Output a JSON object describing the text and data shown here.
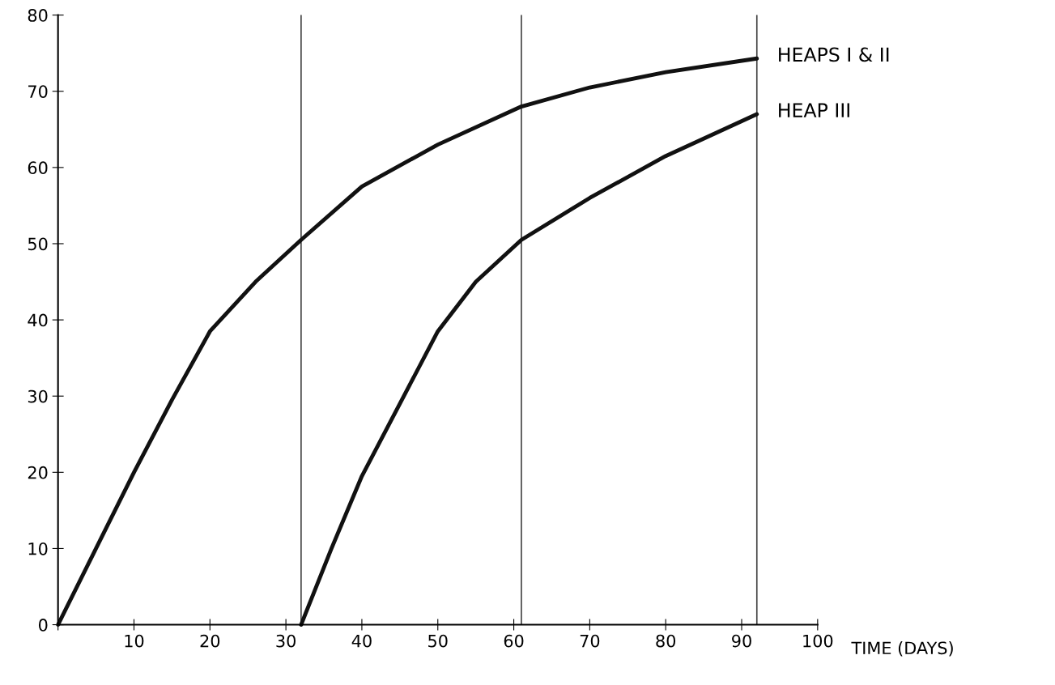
{
  "chart_data": {
    "type": "line",
    "xlabel": "TIME (DAYS)",
    "xlim": [
      0,
      100
    ],
    "ylim": [
      0,
      80
    ],
    "xticks": [
      {
        "value": 0,
        "label": null
      },
      10,
      20,
      30,
      40,
      50,
      60,
      70,
      80,
      90,
      100
    ],
    "yticks": [
      0,
      10,
      20,
      30,
      40,
      50,
      60,
      70,
      80
    ],
    "grid": false,
    "legend": false,
    "marker": "none",
    "line_style": "solid",
    "ref_lines": [
      {
        "axis": "x",
        "value": 32
      },
      {
        "axis": "x",
        "value": 61
      },
      {
        "axis": "x",
        "value": 92
      }
    ],
    "series": [
      {
        "name": "HEAPS I & II",
        "color": "#111111",
        "x": [
          0,
          5,
          10,
          15,
          20,
          26,
          32,
          40,
          50,
          61,
          70,
          80,
          92
        ],
        "values": [
          0,
          10,
          20,
          29.5,
          38.5,
          45,
          50.5,
          57.5,
          63,
          68,
          70.5,
          72.5,
          74.3
        ]
      },
      {
        "name": "HEAP III",
        "color": "#111111",
        "x": [
          32,
          36,
          40,
          45,
          50,
          55,
          61,
          70,
          80,
          92
        ],
        "values": [
          0,
          10,
          19.5,
          29,
          38.5,
          45,
          50.5,
          56,
          61.5,
          67
        ]
      }
    ]
  }
}
